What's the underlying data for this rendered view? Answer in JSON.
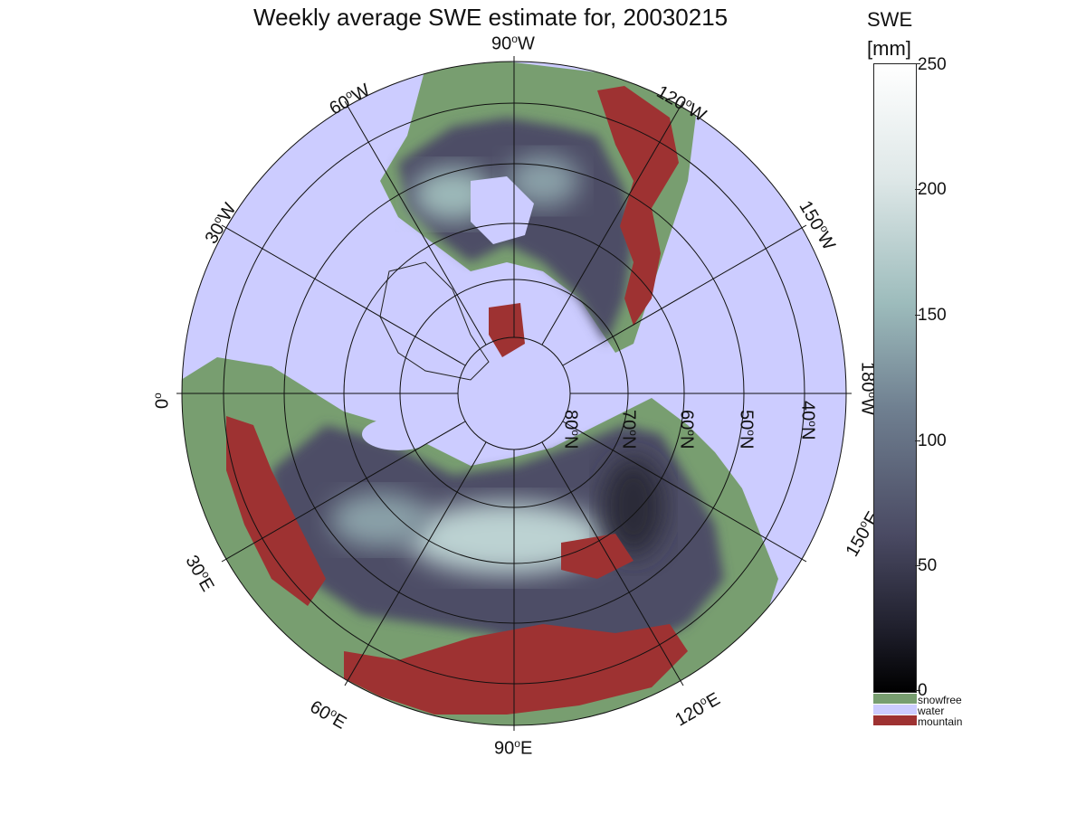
{
  "title": "Weekly average SWE estimate for, 20030215",
  "longitude_labels": {
    "lon_90w": "90",
    "lon_120w": "120",
    "lon_150w": "150",
    "lon_180w": "180",
    "lon_150e": "150",
    "lon_120e": "120",
    "lon_90e": "90",
    "lon_60e": "60",
    "lon_30e": "30",
    "lon_0": "0",
    "lon_30w": "30",
    "lon_60w": "60"
  },
  "longitude_suffix": {
    "w": "W",
    "e": "E",
    "deg": "o"
  },
  "latitude_labels": [
    "80",
    "70",
    "60",
    "50",
    "40"
  ],
  "latitude_suffix": "N",
  "colorbar": {
    "title_line1": "SWE",
    "title_line2": "[mm]",
    "ticks": [
      "250",
      "200",
      "150",
      "100",
      "50",
      "0"
    ],
    "range": [
      0,
      250
    ],
    "colors": [
      "#000000",
      "#1f1f2c",
      "#4a4a63",
      "#6f7f90",
      "#9dbcbc",
      "#dfe8e8",
      "#ffffff"
    ]
  },
  "categories": [
    {
      "label": "snowfree",
      "color": "#789e70"
    },
    {
      "label": "water",
      "color": "#ccccff"
    },
    {
      "label": "mountain",
      "color": "#9e3232"
    }
  ]
}
